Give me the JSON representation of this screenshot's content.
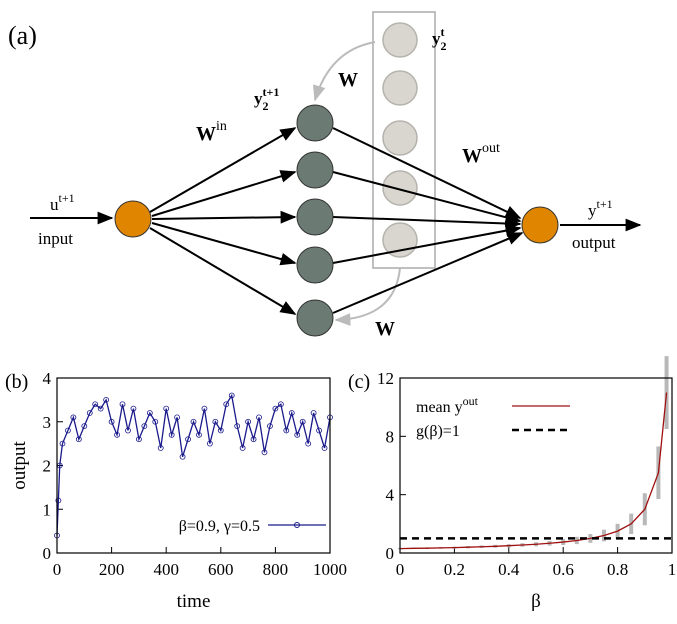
{
  "diagram": {
    "panel_label": "(a)",
    "y2t": {
      "text": "y",
      "sub": "2",
      "sup": "t"
    },
    "y2t1": {
      "text": "y",
      "sub": "2",
      "sup": "t+1"
    },
    "w_top": "W",
    "w_bottom": "W",
    "w_in": {
      "text": "W",
      "sup": "in"
    },
    "w_out": {
      "text": "W",
      "sup": "out"
    },
    "u": {
      "text": "u",
      "sup": "t+1"
    },
    "input": "input",
    "y_out": {
      "text": "y",
      "sup": "t+1"
    },
    "output": "output"
  },
  "chart_data": [
    {
      "type": "line",
      "panel_label": "(b)",
      "x_label": "time",
      "y_label": "output",
      "xlim": [
        0,
        1000
      ],
      "ylim": [
        0,
        4
      ],
      "xticks": [
        0,
        200,
        400,
        600,
        800,
        1000
      ],
      "yticks": [
        0,
        1,
        2,
        3,
        4
      ],
      "legend": "lower right",
      "markers": true,
      "x": [
        0,
        5,
        10,
        20,
        40,
        60,
        80,
        100,
        120,
        140,
        160,
        180,
        200,
        220,
        240,
        260,
        280,
        300,
        320,
        340,
        360,
        380,
        400,
        420,
        440,
        460,
        480,
        500,
        520,
        540,
        560,
        580,
        600,
        620,
        640,
        660,
        680,
        700,
        720,
        740,
        760,
        780,
        800,
        820,
        840,
        860,
        880,
        900,
        920,
        940,
        960,
        980,
        1000
      ],
      "series": [
        {
          "name": "β=0.9, γ=0.5",
          "color": "#1a1a8c",
          "values": [
            0.4,
            1.2,
            2.0,
            2.5,
            2.8,
            3.1,
            2.6,
            2.9,
            3.2,
            3.4,
            3.3,
            3.5,
            3.0,
            2.7,
            3.4,
            2.8,
            3.3,
            2.6,
            2.9,
            3.2,
            3.0,
            2.4,
            3.3,
            2.7,
            3.1,
            2.2,
            2.6,
            3.0,
            2.7,
            3.3,
            2.5,
            3.0,
            2.8,
            3.4,
            3.6,
            2.9,
            2.4,
            3.0,
            2.6,
            3.1,
            2.3,
            2.9,
            3.3,
            3.4,
            2.8,
            3.2,
            2.7,
            3.0,
            2.5,
            3.2,
            2.8,
            2.4,
            3.1
          ]
        }
      ]
    },
    {
      "type": "line",
      "panel_label": "(c)",
      "x_label": "β",
      "xlim": [
        0,
        1
      ],
      "ylim": [
        0,
        12
      ],
      "xticks": [
        0,
        0.2,
        0.4,
        0.6,
        0.8,
        1
      ],
      "yticks": [
        0,
        4,
        8,
        12
      ],
      "legend": "upper left",
      "markers": false,
      "x": [
        0,
        0.05,
        0.1,
        0.15,
        0.2,
        0.25,
        0.3,
        0.35,
        0.4,
        0.45,
        0.5,
        0.55,
        0.6,
        0.65,
        0.7,
        0.75,
        0.8,
        0.85,
        0.9,
        0.95,
        0.98
      ],
      "series": [
        {
          "name": "mean y",
          "name_superscript": "out",
          "color": "#a01010",
          "error_color": "#b8b8b8",
          "values": [
            0.3,
            0.32,
            0.33,
            0.35,
            0.37,
            0.4,
            0.43,
            0.46,
            0.5,
            0.55,
            0.6,
            0.67,
            0.75,
            0.86,
            1.0,
            1.2,
            1.5,
            2.0,
            3.0,
            5.5,
            11
          ],
          "errors": [
            0.05,
            0.05,
            0.06,
            0.06,
            0.07,
            0.08,
            0.09,
            0.1,
            0.11,
            0.12,
            0.14,
            0.16,
            0.2,
            0.25,
            0.3,
            0.4,
            0.5,
            0.7,
            1.1,
            1.8,
            2.5
          ]
        },
        {
          "name": "g(β)=1",
          "color": "#000000",
          "dashed": true,
          "x": [
            0,
            1
          ],
          "values": [
            1,
            1
          ]
        }
      ]
    }
  ]
}
